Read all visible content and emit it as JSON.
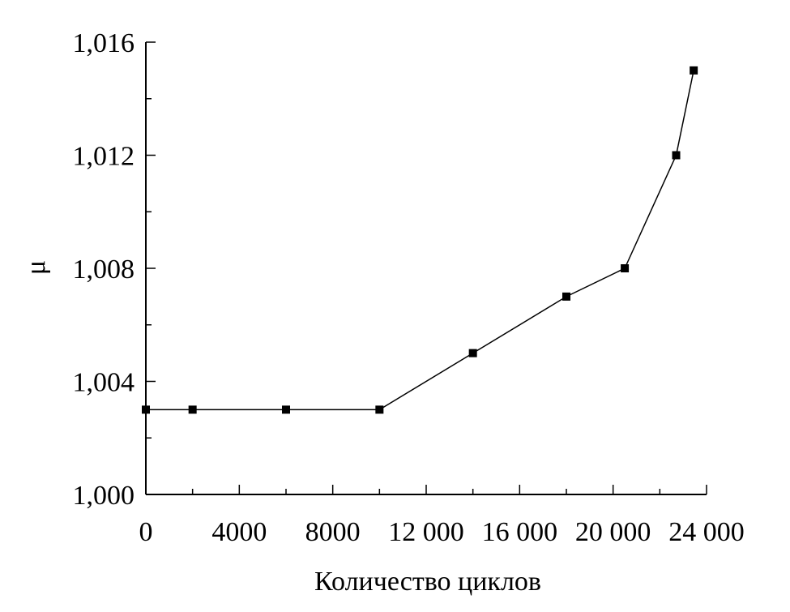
{
  "chart_data": {
    "type": "line",
    "title": "",
    "xlabel": "Количество циклов",
    "ylabel": "μ",
    "xlim": [
      0,
      24000
    ],
    "ylim": [
      1.0,
      1.016
    ],
    "xticks": [
      0,
      4000,
      8000,
      12000,
      16000,
      20000,
      24000
    ],
    "xtick_labels": [
      "0",
      "4000",
      "8000",
      "12 000",
      "16 000",
      "20 000",
      "24 000"
    ],
    "xminor_step": 2000,
    "yticks": [
      1.0,
      1.004,
      1.008,
      1.012,
      1.016
    ],
    "ytick_labels": [
      "1,000",
      "1,004",
      "1,008",
      "1,012",
      "1,016"
    ],
    "yminor_step": 0.002,
    "grid": false,
    "series": [
      {
        "name": "μ",
        "marker": "square",
        "color": "#000000",
        "x": [
          0,
          2000,
          6000,
          10000,
          14000,
          18000,
          20500,
          22700,
          23450
        ],
        "y": [
          1.003,
          1.003,
          1.003,
          1.003,
          1.005,
          1.007,
          1.008,
          1.012,
          1.015
        ]
      }
    ]
  }
}
